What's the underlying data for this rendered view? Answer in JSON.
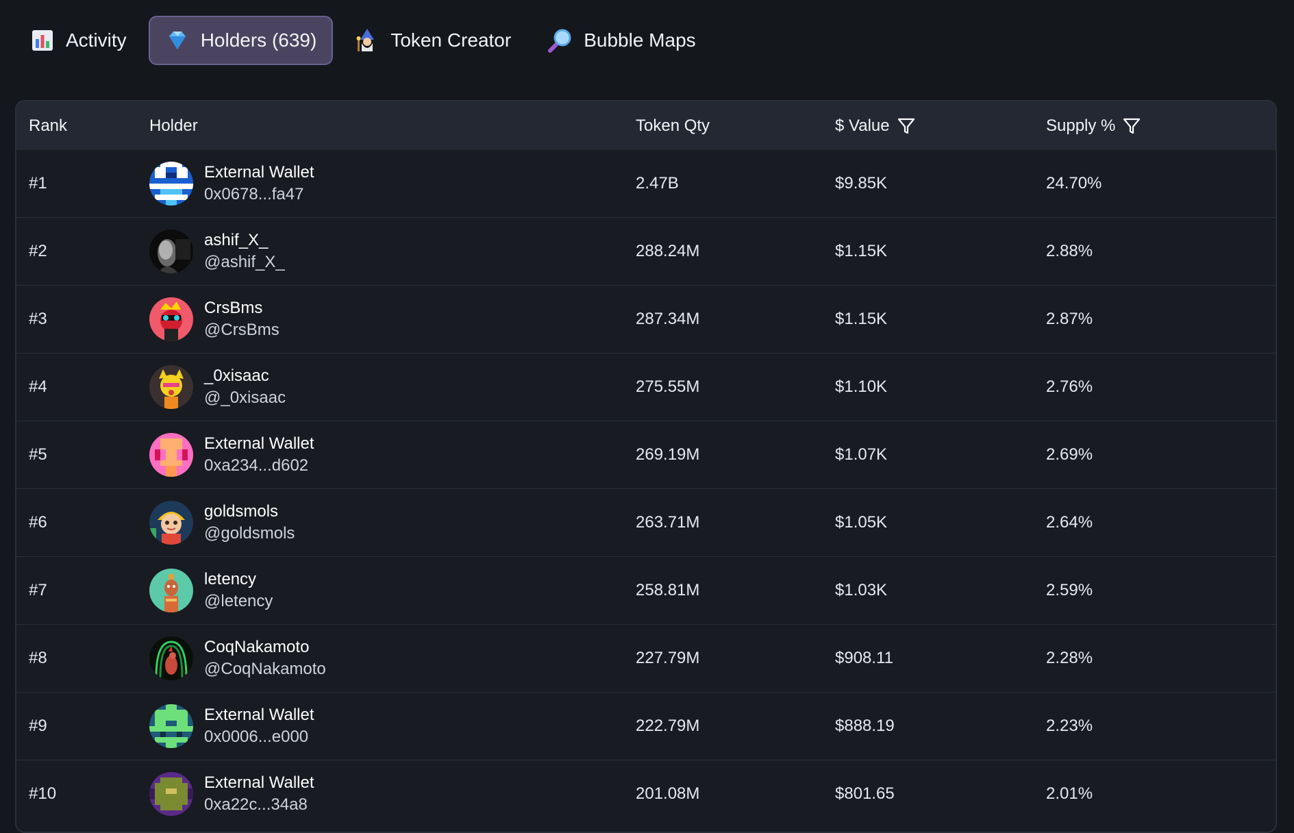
{
  "tabs": [
    {
      "label": "Activity",
      "icon": "bar-chart-icon",
      "active": false
    },
    {
      "label": "Holders (639)",
      "icon": "gem-icon",
      "active": true
    },
    {
      "label": "Token Creator",
      "icon": "wizard-icon",
      "active": false
    },
    {
      "label": "Bubble Maps",
      "icon": "magnifier-icon",
      "active": false
    }
  ],
  "table": {
    "headers": {
      "rank": "Rank",
      "holder": "Holder",
      "qty": "Token Qty",
      "value": "$ Value",
      "supply": "Supply %"
    },
    "rows": [
      {
        "rank": "#1",
        "name": "External Wallet",
        "sub": "0x0678...fa47",
        "qty": "2.47B",
        "value": "$9.85K",
        "supply": "24.70%",
        "avatar": "pixel-blue"
      },
      {
        "rank": "#2",
        "name": "ashif_X_",
        "sub": "@ashif_X_",
        "qty": "288.24M",
        "value": "$1.15K",
        "supply": "2.88%",
        "avatar": "photo-dark"
      },
      {
        "rank": "#3",
        "name": "CrsBms",
        "sub": "@CrsBms",
        "qty": "287.34M",
        "value": "$1.15K",
        "supply": "2.87%",
        "avatar": "red-character"
      },
      {
        "rank": "#4",
        "name": "_0xisaac",
        "sub": "@_0xisaac",
        "qty": "275.55M",
        "value": "$1.10K",
        "supply": "2.76%",
        "avatar": "yellow-character"
      },
      {
        "rank": "#5",
        "name": "External Wallet",
        "sub": "0xa234...d602",
        "qty": "269.19M",
        "value": "$1.07K",
        "supply": "2.69%",
        "avatar": "pixel-pink"
      },
      {
        "rank": "#6",
        "name": "goldsmols",
        "sub": "@goldsmols",
        "qty": "263.71M",
        "value": "$1.05K",
        "supply": "2.64%",
        "avatar": "cartoon-face"
      },
      {
        "rank": "#7",
        "name": "letency",
        "sub": "@letency",
        "qty": "258.81M",
        "value": "$1.03K",
        "supply": "2.59%",
        "avatar": "ape-teal"
      },
      {
        "rank": "#8",
        "name": "CoqNakamoto",
        "sub": "@CoqNakamoto",
        "qty": "227.79M",
        "value": "$908.11",
        "supply": "2.28%",
        "avatar": "rooster-green"
      },
      {
        "rank": "#9",
        "name": "External Wallet",
        "sub": "0x0006...e000",
        "qty": "222.79M",
        "value": "$888.19",
        "supply": "2.23%",
        "avatar": "pixel-green"
      },
      {
        "rank": "#10",
        "name": "External Wallet",
        "sub": "0xa22c...34a8",
        "qty": "201.08M",
        "value": "$801.65",
        "supply": "2.01%",
        "avatar": "pixel-purple"
      }
    ]
  }
}
